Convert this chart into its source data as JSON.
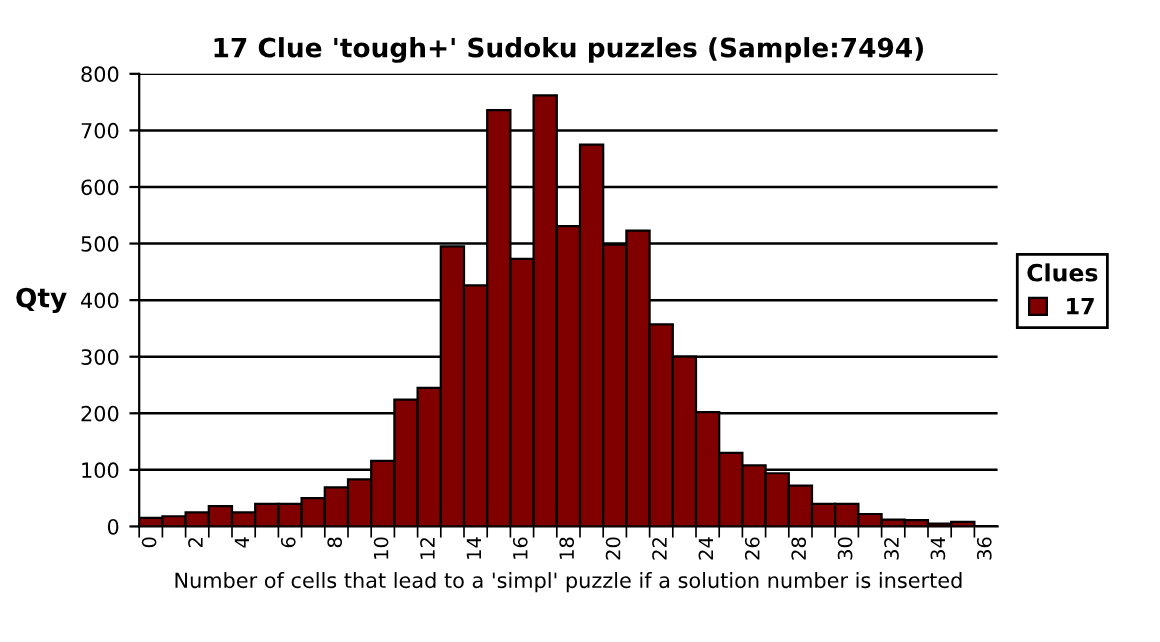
{
  "chart_data": {
    "type": "bar",
    "title": "17 Clue 'tough+' Sudoku puzzles (Sample:7494)",
    "xlabel": "Number of cells that lead to a 'simpl' puzzle if a solution number is inserted",
    "ylabel": "Qty",
    "legend_title": "Clues",
    "categories": [
      "0",
      null,
      "2",
      null,
      "4",
      null,
      "6",
      null,
      "8",
      null,
      "10",
      null,
      "12",
      null,
      "14",
      null,
      "16",
      null,
      "18",
      null,
      "20",
      null,
      "22",
      null,
      "24",
      null,
      "26",
      null,
      "28",
      null,
      "30",
      null,
      "32",
      null,
      "34",
      null,
      "36"
    ],
    "series": [
      {
        "name": "17",
        "color": "#800000",
        "values": [
          15,
          18,
          25,
          36,
          25,
          40,
          40,
          50,
          69,
          83,
          116,
          224,
          245,
          495,
          426,
          736,
          473,
          762,
          531,
          675,
          498,
          523,
          357,
          300,
          202,
          130,
          108,
          94,
          72,
          40,
          40,
          22,
          12,
          11,
          5,
          8,
          0
        ]
      }
    ],
    "ylim": [
      0,
      800
    ],
    "yticks": [
      0,
      100,
      200,
      300,
      400,
      500,
      600,
      700,
      800
    ],
    "grid": "y",
    "legend": "right"
  }
}
